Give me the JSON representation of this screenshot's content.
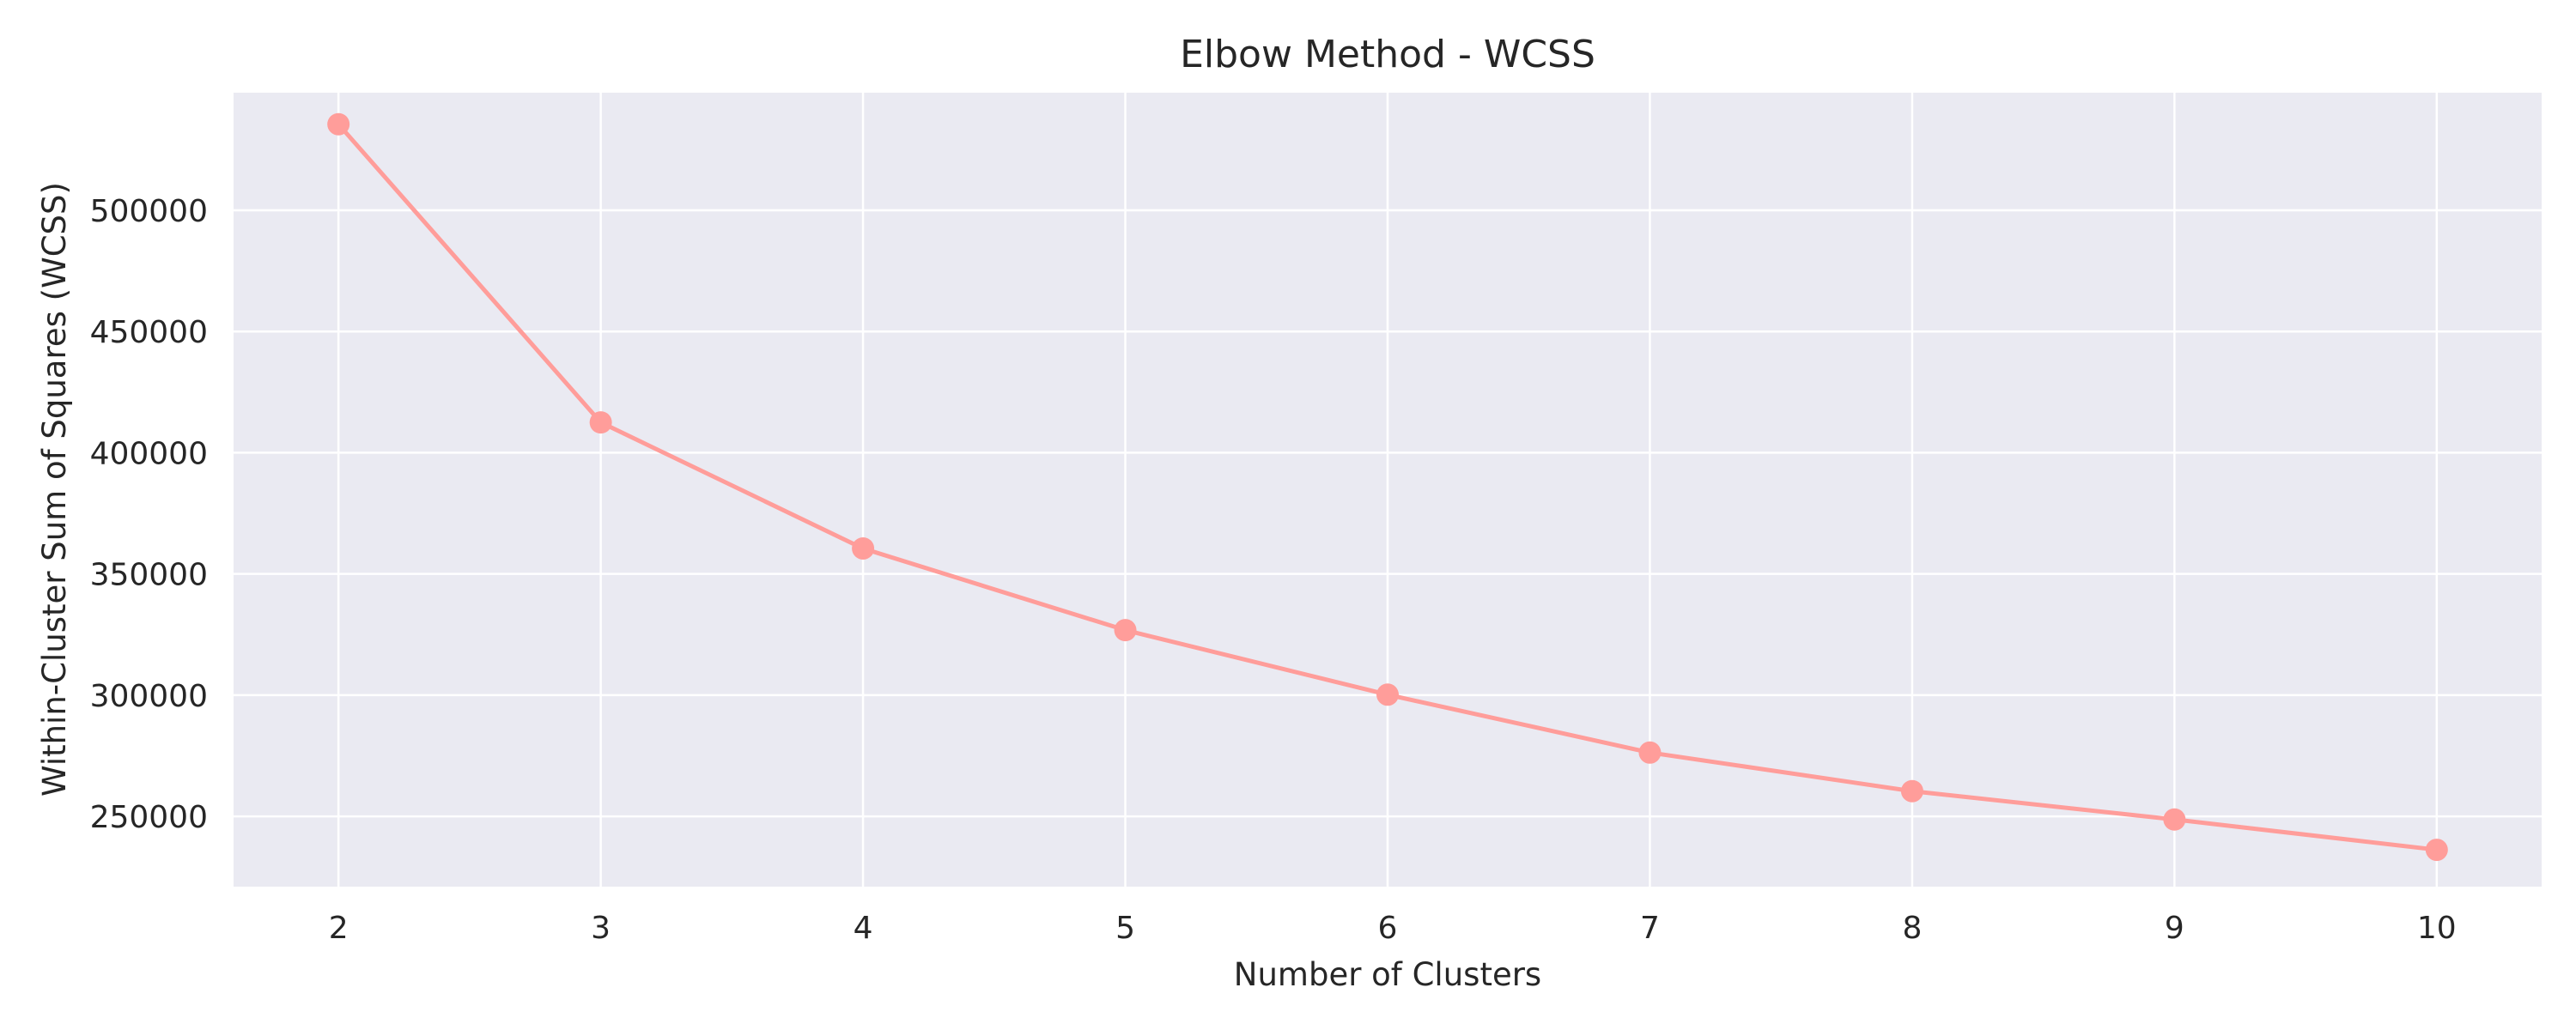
{
  "chart_data": {
    "type": "line",
    "title": "Elbow Method - WCSS",
    "xlabel": "Number of Clusters",
    "ylabel": "Within-Cluster Sum of Squares (WCSS)",
    "x": [
      2,
      3,
      4,
      5,
      6,
      7,
      8,
      9,
      10
    ],
    "series": [
      {
        "values": [
          535500,
          412500,
          360500,
          326800,
          300200,
          276300,
          260400,
          248700,
          236200
        ],
        "color": "#ff9d9a",
        "marker": "circle"
      }
    ],
    "xlim": [
      1.6,
      10.4
    ],
    "ylim": [
      221000,
      548500
    ],
    "x_ticks": [
      "2",
      "3",
      "4",
      "5",
      "6",
      "7",
      "8",
      "9",
      "10"
    ],
    "y_ticks": [
      "250000",
      "300000",
      "350000",
      "400000",
      "450000",
      "500000"
    ],
    "y_tick_values": [
      250000,
      300000,
      350000,
      400000,
      450000,
      500000
    ],
    "grid": true,
    "plot_background": "#eaeaf2",
    "grid_color": "#ffffff"
  }
}
